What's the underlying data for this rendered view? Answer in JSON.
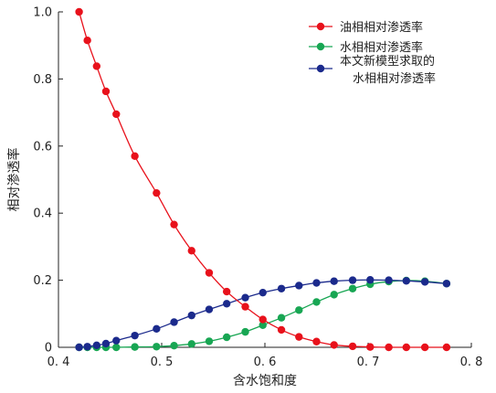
{
  "chart_data": {
    "type": "line",
    "xlabel": "含水饱和度",
    "ylabel": "相对渗透率",
    "xlim": [
      0.4,
      0.8
    ],
    "ylim": [
      0,
      1.0
    ],
    "x_ticks": [
      "0. 4",
      "0. 5",
      "0. 6",
      "0. 7",
      "0. 8"
    ],
    "y_ticks": [
      "0",
      "0.2",
      "0.4",
      "0.6",
      "0.8",
      "1.0"
    ],
    "grid": false,
    "legend_position": "top-right",
    "series": [
      {
        "name": "油相相对渗透率",
        "color": "#e8111b",
        "x": [
          0.42,
          0.428,
          0.437,
          0.446,
          0.456,
          0.474,
          0.495,
          0.512,
          0.529,
          0.546,
          0.563,
          0.581,
          0.598,
          0.616,
          0.633,
          0.65,
          0.667,
          0.685,
          0.702,
          0.72,
          0.737,
          0.755,
          0.776
        ],
        "y": [
          1.0,
          0.915,
          0.838,
          0.763,
          0.695,
          0.57,
          0.46,
          0.366,
          0.288,
          0.222,
          0.166,
          0.121,
          0.083,
          0.052,
          0.031,
          0.017,
          0.007,
          0.003,
          0.001,
          0.0,
          0.0,
          0.0,
          0.0
        ]
      },
      {
        "name": "水相相对渗透率",
        "color": "#18a653",
        "x": [
          0.42,
          0.428,
          0.437,
          0.446,
          0.456,
          0.474,
          0.495,
          0.512,
          0.529,
          0.546,
          0.563,
          0.581,
          0.598,
          0.616,
          0.633,
          0.65,
          0.667,
          0.685,
          0.702,
          0.72,
          0.737,
          0.755,
          0.776
        ],
        "y": [
          0.0,
          0.0,
          0.0,
          0.0,
          0.0,
          0.001,
          0.002,
          0.005,
          0.01,
          0.018,
          0.03,
          0.046,
          0.066,
          0.088,
          0.111,
          0.135,
          0.157,
          0.175,
          0.188,
          0.196,
          0.199,
          0.197,
          0.19
        ]
      },
      {
        "name_lines": [
          "本文新模型求取的",
          "水相相对渗透率"
        ],
        "color": "#1b2a8c",
        "x": [
          0.42,
          0.428,
          0.437,
          0.446,
          0.456,
          0.474,
          0.495,
          0.512,
          0.529,
          0.546,
          0.563,
          0.581,
          0.598,
          0.616,
          0.633,
          0.65,
          0.667,
          0.685,
          0.702,
          0.72,
          0.737,
          0.755,
          0.776
        ],
        "y": [
          0.0,
          0.002,
          0.006,
          0.011,
          0.02,
          0.035,
          0.055,
          0.075,
          0.095,
          0.113,
          0.13,
          0.148,
          0.163,
          0.175,
          0.184,
          0.192,
          0.197,
          0.2,
          0.201,
          0.2,
          0.198,
          0.195,
          0.19
        ]
      }
    ]
  },
  "colors": {
    "axis": "#222222"
  }
}
